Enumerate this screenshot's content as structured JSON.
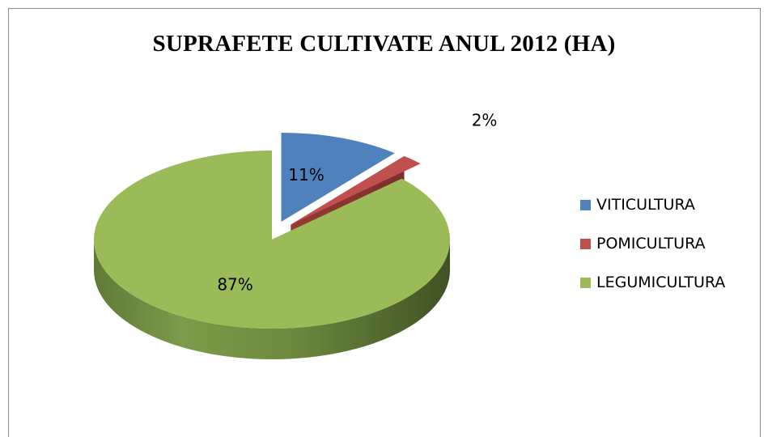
{
  "chart_data": {
    "type": "pie",
    "title": "SUPRAFETE CULTIVATE ANUL 2012 (HA)",
    "style": "3d-exploded",
    "legend_position": "right",
    "slices": [
      {
        "name": "VITICULTURA",
        "value": 11,
        "label": "11%",
        "color": "#4F81BD"
      },
      {
        "name": "POMICULTURA",
        "value": 2,
        "label": "2%",
        "color": "#C0504D"
      },
      {
        "name": "LEGUMICULTURA",
        "value": 87,
        "label": "87%",
        "color": "#9BBB59"
      }
    ]
  }
}
